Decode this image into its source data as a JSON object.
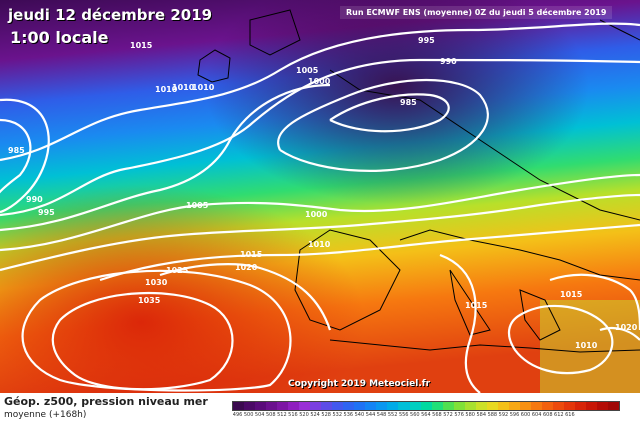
{
  "header": {
    "date": "jeudi 12 décembre 2019",
    "time": "1:00 locale",
    "run": "Run ECMWF ENS (moyenne) 0Z du jeudi 5 décembre 2019"
  },
  "credit": "Copyright 2019 Meteociel.fr",
  "footer": {
    "title": "Géop. z500, pression niveau mer",
    "subtitle": "moyenne  (+168h)"
  },
  "isobar_labels": [
    {
      "id": "p1015a",
      "text": "1015"
    },
    {
      "id": "p1010a",
      "text": "1010"
    },
    {
      "id": "p1010b",
      "text": "1010"
    },
    {
      "id": "p1010c",
      "text": "1010"
    },
    {
      "id": "p1005a",
      "text": "1005"
    },
    {
      "id": "p1000a",
      "text": "1000"
    },
    {
      "id": "p995a",
      "text": "995"
    },
    {
      "id": "p990a",
      "text": "990"
    },
    {
      "id": "p985a",
      "text": "985"
    },
    {
      "id": "p985b",
      "text": "985"
    },
    {
      "id": "p990b",
      "text": "990"
    },
    {
      "id": "p995b",
      "text": "995"
    },
    {
      "id": "p1005b",
      "text": "1005"
    },
    {
      "id": "p1000b",
      "text": "1000"
    },
    {
      "id": "p1010d",
      "text": "1010"
    },
    {
      "id": "p1015b",
      "text": "1015"
    },
    {
      "id": "p1020a",
      "text": "1020"
    },
    {
      "id": "p1025a",
      "text": "1025"
    },
    {
      "id": "p1030a",
      "text": "1030"
    },
    {
      "id": "p1035a",
      "text": "1035"
    },
    {
      "id": "p1015c",
      "text": "1015"
    },
    {
      "id": "p1015d",
      "text": "1015"
    },
    {
      "id": "p1020b",
      "text": "1020"
    },
    {
      "id": "p1010e",
      "text": "1010"
    }
  ],
  "colorbar": {
    "colors": [
      "#3b0a4f",
      "#4b0a66",
      "#5a0c7a",
      "#6b118e",
      "#7d16a4",
      "#8f1fbf",
      "#9a2fd6",
      "#7a3fe0",
      "#5d4ce6",
      "#4358ee",
      "#2f64f2",
      "#1f72f5",
      "#1484f5",
      "#0a97f0",
      "#00abe8",
      "#00bfd8",
      "#00cfc0",
      "#00d9a0",
      "#20df78",
      "#50e050",
      "#80e038",
      "#a8e030",
      "#cce028",
      "#e8d820",
      "#f4c018",
      "#f8a814",
      "#f89012",
      "#f67810",
      "#f2600e",
      "#ec4a0c",
      "#e4360a",
      "#d82408",
      "#c81606",
      "#b40c06",
      "#a00806"
    ],
    "ticks": [
      "496",
      "500",
      "504",
      "508",
      "512",
      "516",
      "520",
      "524",
      "528",
      "532",
      "536",
      "540",
      "544",
      "548",
      "552",
      "556",
      "560",
      "564",
      "568",
      "572",
      "576",
      "580",
      "584",
      "588",
      "592",
      "596",
      "600",
      "604",
      "608",
      "612",
      "616",
      "",
      "",
      "",
      ""
    ]
  }
}
